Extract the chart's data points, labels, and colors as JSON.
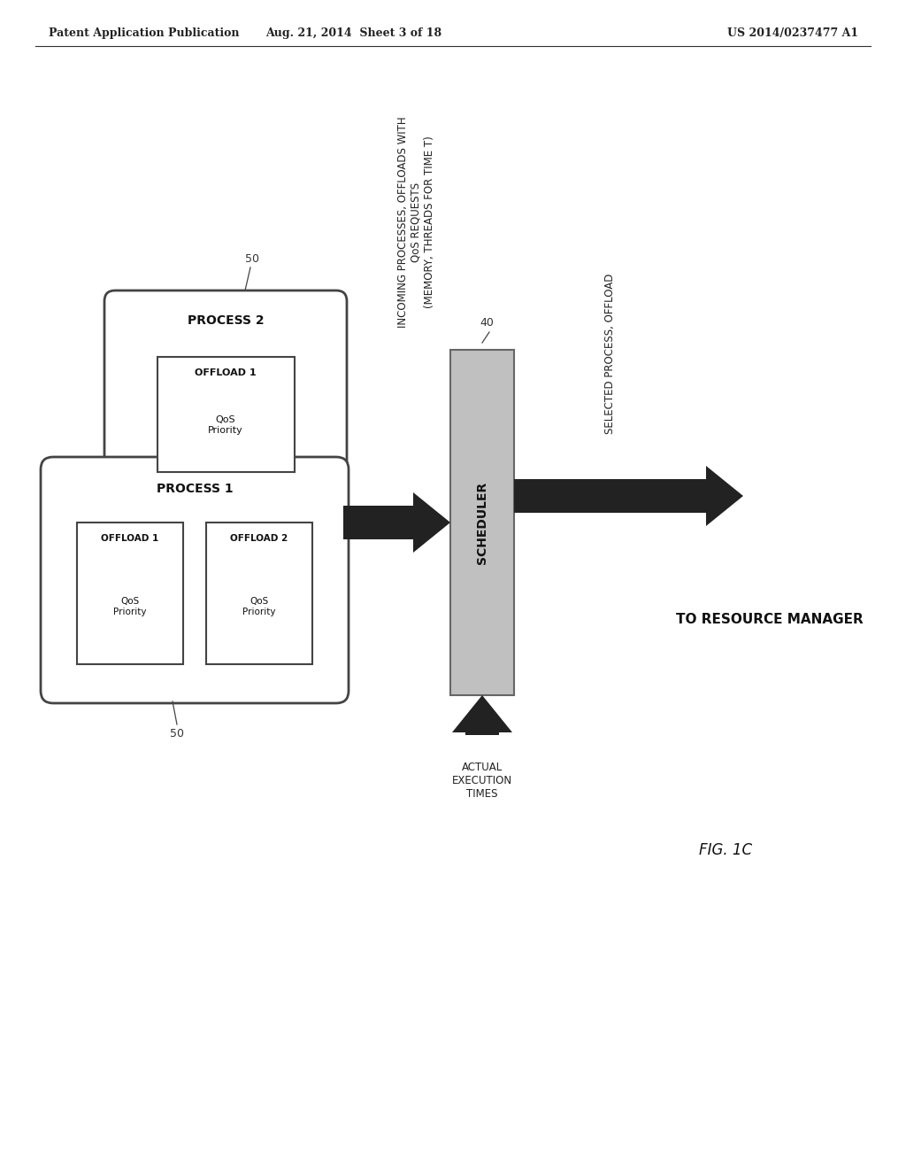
{
  "bg_color": "#ffffff",
  "header_left": "Patent Application Publication",
  "header_mid": "Aug. 21, 2014  Sheet 3 of 18",
  "header_right": "US 2014/0237477 A1",
  "footer_label": "FIG. 1C",
  "process1_label": "PROCESS 1",
  "process2_label": "PROCESS 2",
  "offload1_label": "OFFLOAD 1",
  "offload1_sub": "QoS\nPriority",
  "offload2_label": "OFFLOAD 2",
  "offload2_sub": "QoS\nPriority",
  "offload3_label": "OFFLOAD 1",
  "offload3_sub": "QoS\nPriority",
  "scheduler_label": "SCHEDULER",
  "num_40": "40",
  "num_50_top": "50",
  "num_50_bot": "50",
  "incoming_text": "INCOMING PROCESSES, OFFLOADS WITH\nQoS REQUESTS\n(MEMORY, THREADS FOR TIME T)",
  "selected_text": "SELECTED PROCESS, OFFLOAD",
  "actual_text": "ACTUAL\nEXECUTION\nTIMES",
  "resource_manager_text": "TO RESOURCE MANAGER"
}
